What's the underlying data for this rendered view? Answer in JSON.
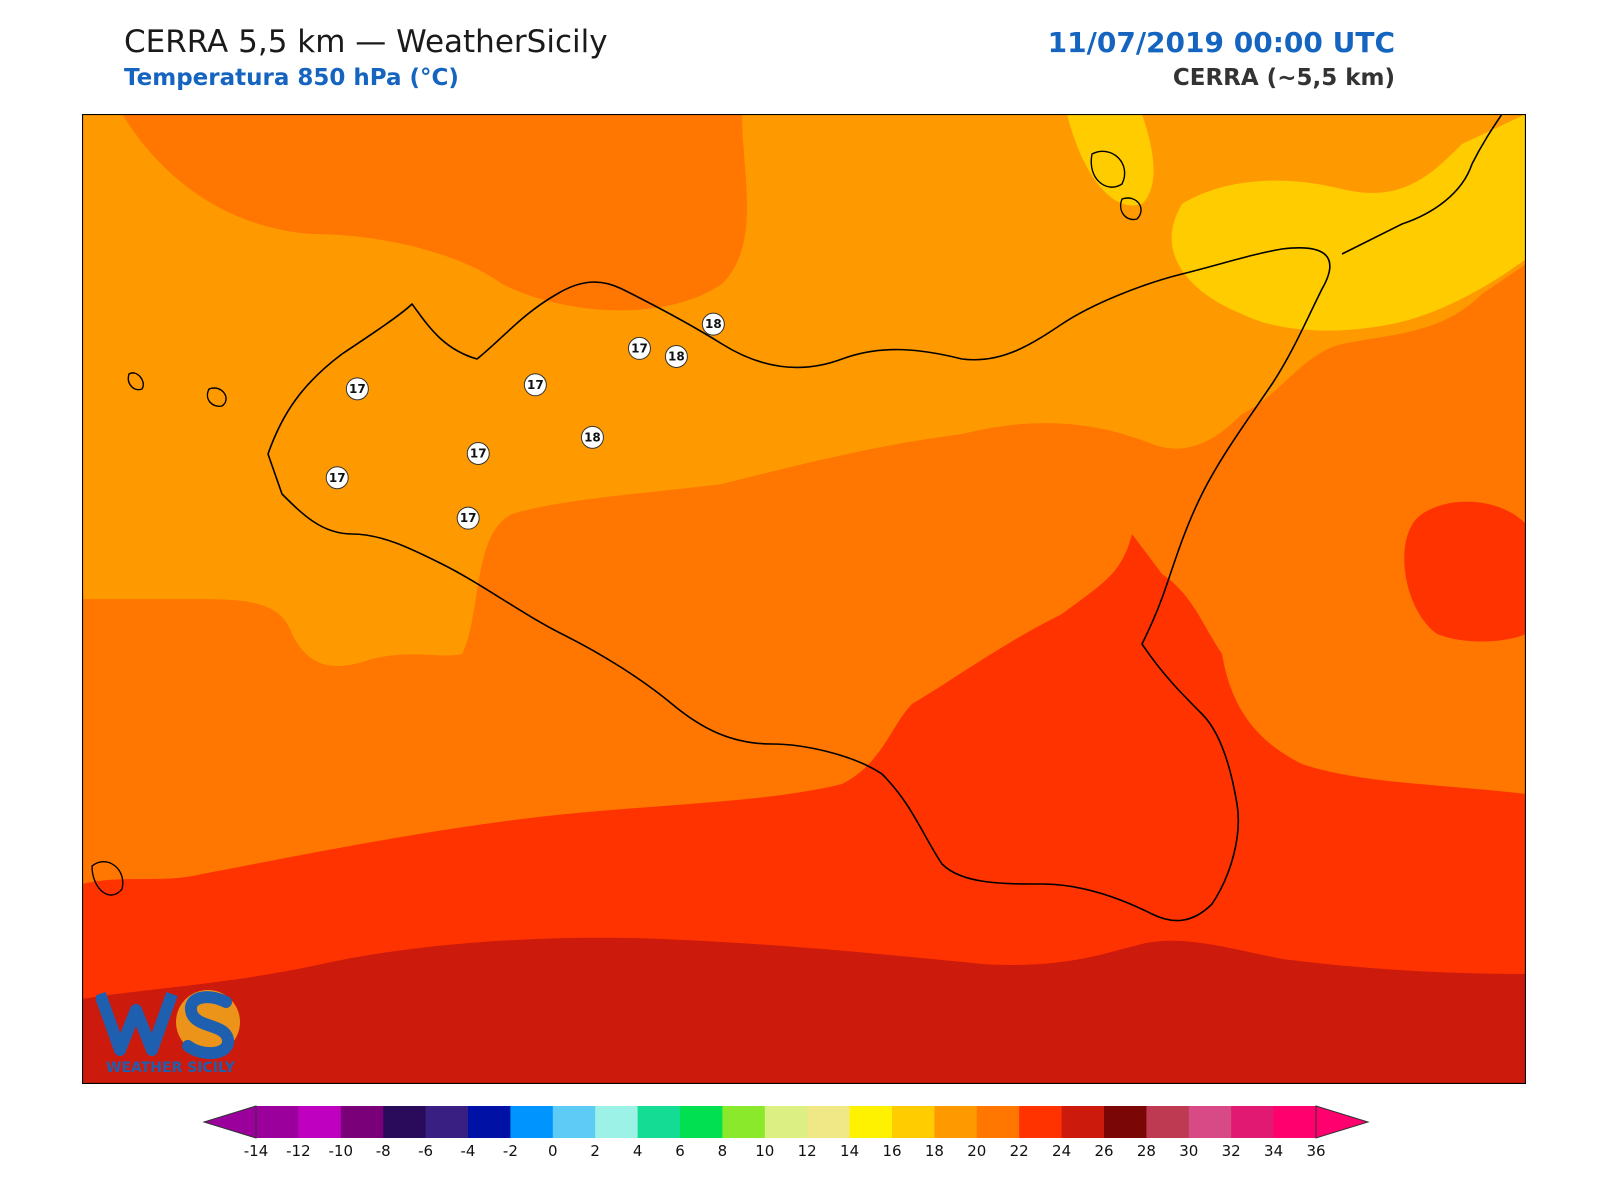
{
  "header": {
    "title": "CERRA 5,5 km — WeatherSicily",
    "subtitle": "Temperatura 850 hPa (°C)",
    "valid_time": "11/07/2019 00:00 UTC",
    "model": "CERRA (~5,5 km)"
  },
  "logo": {
    "text": "WEATHER SICILY",
    "monogram": "WS"
  },
  "colorbar": {
    "levels": [
      -16,
      -14,
      -12,
      -10,
      -8,
      -6,
      -4,
      -2,
      0,
      2,
      4,
      6,
      8,
      10,
      12,
      14,
      16,
      18,
      20,
      22,
      24,
      26,
      28,
      30,
      32,
      34,
      36,
      38
    ],
    "tick_labels": [
      "-14",
      "-12",
      "-10",
      "-8",
      "-6",
      "-4",
      "-2",
      "0",
      "2",
      "4",
      "6",
      "8",
      "10",
      "12",
      "14",
      "16",
      "18",
      "20",
      "22",
      "24",
      "26",
      "28",
      "30",
      "32",
      "34",
      "36"
    ],
    "colors": [
      "#9c009c",
      "#c000c0",
      "#7a007a",
      "#2a0a5a",
      "#3a1f82",
      "#0012a6",
      "#0094ff",
      "#5ecbf6",
      "#9cf2e6",
      "#15dc95",
      "#00e050",
      "#8ae92b",
      "#dcef82",
      "#f0e786",
      "#fff200",
      "#ffcc00",
      "#ff9900",
      "#ff7700",
      "#ff3300",
      "#cc1a0c",
      "#7a0606",
      "#bd3a52",
      "#d84a86",
      "#e21972",
      "#ff006e"
    ]
  },
  "map": {
    "field": "temperature_850hPa",
    "units": "°C",
    "station_values": [
      {
        "lon": 13.36,
        "lat": 38.12,
        "value": 17
      },
      {
        "lon": 12.52,
        "lat": 38.02,
        "value": 17
      },
      {
        "lon": 12.46,
        "lat": 37.8,
        "value": 17
      },
      {
        "lon": 12.85,
        "lat": 37.7,
        "value": 17
      },
      {
        "lon": 13.05,
        "lat": 38.03,
        "value": 17
      },
      {
        "lon": 12.88,
        "lat": 37.86,
        "value": 17
      },
      {
        "lon": 13.22,
        "lat": 37.9,
        "value": 18
      },
      {
        "lon": 13.47,
        "lat": 38.1,
        "value": 18
      },
      {
        "lon": 13.58,
        "lat": 38.18,
        "value": 18
      }
    ]
  }
}
